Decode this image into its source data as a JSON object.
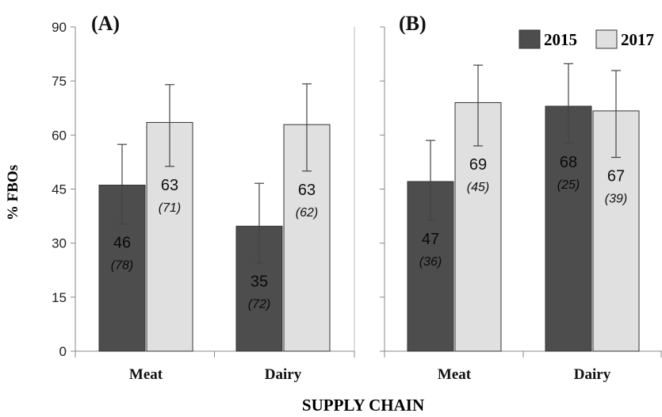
{
  "chart_data": [
    {
      "type": "bar",
      "panel_label": "(A)",
      "categories": [
        "Meat",
        "Dairy"
      ],
      "series": [
        {
          "name": "2015",
          "values": [
            46,
            35
          ],
          "n": [
            "78",
            "72"
          ],
          "err_low": [
            35.3,
            24.5
          ],
          "err_high": [
            57.4,
            46.6
          ],
          "color": "#4d4d4d"
        },
        {
          "name": "2017",
          "values": [
            63,
            63
          ],
          "n": [
            "71",
            "62"
          ],
          "err_low": [
            51.3,
            50.0
          ],
          "err_high": [
            74.0,
            74.2
          ],
          "color": "#e0e0e0"
        }
      ],
      "bar_heights": [
        [
          46.1,
          34.7
        ],
        [
          63.5,
          62.9
        ]
      ],
      "ylim": [
        0,
        90
      ],
      "yticks": [
        0,
        15,
        30,
        45,
        60,
        75,
        90
      ]
    },
    {
      "type": "bar",
      "panel_label": "(B)",
      "categories": [
        "Meat",
        "Dairy"
      ],
      "series": [
        {
          "name": "2015",
          "values": [
            47,
            68
          ],
          "n": [
            "36",
            "25"
          ],
          "err_low": [
            36.3,
            57.7
          ],
          "err_high": [
            58.5,
            79.8
          ],
          "color": "#4d4d4d"
        },
        {
          "name": "2017",
          "values": [
            69,
            67
          ],
          "n": [
            "45",
            "39"
          ],
          "err_low": [
            57.0,
            53.8
          ],
          "err_high": [
            79.4,
            77.9
          ],
          "color": "#e0e0e0"
        }
      ],
      "bar_heights": [
        [
          47.1,
          68.0
        ],
        [
          69.0,
          66.7
        ]
      ],
      "ylim": [
        0,
        90
      ]
    }
  ],
  "ylabel": "% FBOs",
  "xlabel": "SUPPLY CHAIN",
  "legend": {
    "placement": "top-right",
    "items": [
      "2015",
      "2017"
    ]
  }
}
